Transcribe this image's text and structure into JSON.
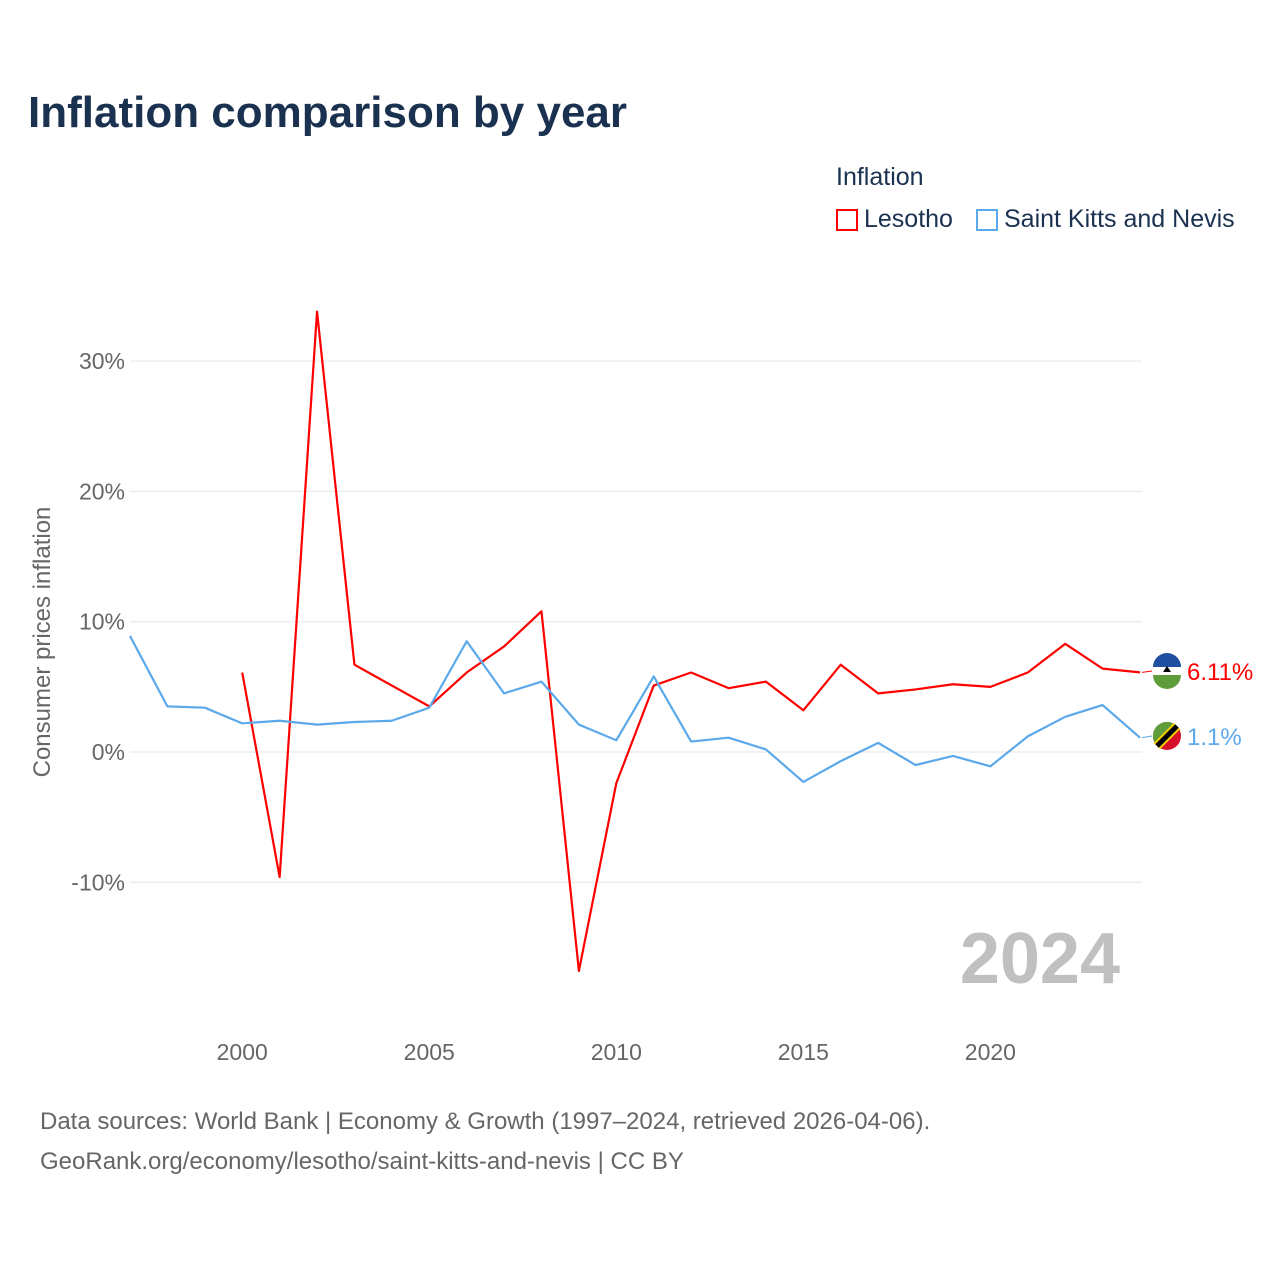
{
  "title": "Inflation comparison by year",
  "legend": {
    "title": "Inflation",
    "items": [
      "Lesotho",
      "Saint Kitts and Nevis"
    ]
  },
  "source_line1": "Data sources: World Bank | Economy & Growth (1997–2024, retrieved 2026-04-06).",
  "source_line2": "GeoRank.org/economy/lesotho/saint-kitts-and-nevis | CC BY",
  "chart_data": {
    "type": "line",
    "title": "Inflation comparison by year",
    "ylabel": "Consumer prices inflation",
    "xlabel": "",
    "xlim": [
      1997,
      2024
    ],
    "ylim": [
      -20,
      36
    ],
    "x_ticks": [
      2000,
      2005,
      2010,
      2015,
      2020
    ],
    "y_ticks": [
      -10,
      0,
      10,
      20,
      30
    ],
    "y_tick_labels": [
      "-10%",
      "0%",
      "10%",
      "20%",
      "30%"
    ],
    "year_watermark": "2024",
    "grid": true,
    "legend_position": "top-right",
    "series": [
      {
        "name": "Lesotho",
        "color": "#ff0000",
        "end_label": "6.11%",
        "x": [
          2000,
          2001,
          2002,
          2003,
          2004,
          2005,
          2006,
          2007,
          2008,
          2009,
          2010,
          2011,
          2012,
          2013,
          2014,
          2015,
          2016,
          2017,
          2018,
          2019,
          2020,
          2021,
          2022,
          2023,
          2024
        ],
        "values": [
          6.1,
          -9.6,
          33.8,
          6.7,
          5.1,
          3.5,
          6.1,
          8.1,
          10.8,
          -16.8,
          -2.4,
          5.1,
          6.1,
          4.9,
          5.4,
          3.2,
          6.7,
          4.5,
          4.8,
          5.2,
          5.0,
          6.1,
          8.3,
          6.4,
          6.11
        ]
      },
      {
        "name": "Saint Kitts and Nevis",
        "color": "#5ba8ea",
        "end_label": "1.1%",
        "x": [
          1997,
          1998,
          1999,
          2000,
          2001,
          2002,
          2003,
          2004,
          2005,
          2006,
          2007,
          2008,
          2009,
          2010,
          2011,
          2012,
          2013,
          2014,
          2015,
          2016,
          2017,
          2018,
          2019,
          2020,
          2021,
          2022,
          2023,
          2024
        ],
        "values": [
          8.9,
          3.5,
          3.4,
          2.2,
          2.4,
          2.1,
          2.3,
          2.4,
          3.4,
          8.5,
          4.5,
          5.4,
          2.1,
          0.9,
          5.8,
          0.8,
          1.1,
          0.2,
          -2.3,
          -0.7,
          0.7,
          -1.0,
          -0.3,
          -1.1,
          1.2,
          2.7,
          3.6,
          1.1
        ]
      }
    ]
  }
}
